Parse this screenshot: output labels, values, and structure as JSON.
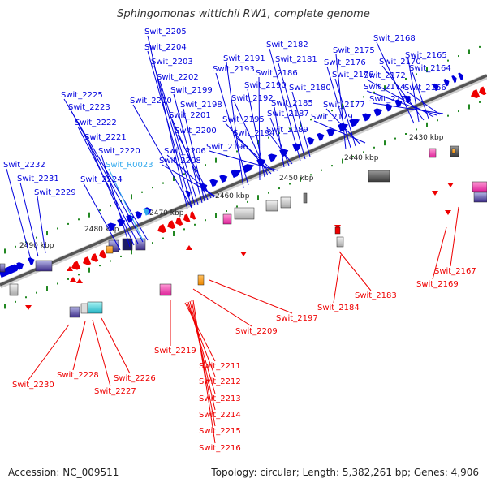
{
  "title": "Sphingomonas wittichii RW1, complete genome",
  "footer": {
    "accession": "Accession: NC_009511",
    "topology": "Topology: circular; Length: 5,382,261 bp; Genes: 4,906"
  },
  "colors": {
    "forward_gene": "#0000dd",
    "reverse_gene": "#ee0000",
    "rna": "#33aaee",
    "backbone": "#555555",
    "tick": "#228822"
  },
  "scale_labels": [
    "2430 kbp",
    "2440 kbp",
    "2450 kbp",
    "2460 kbp",
    "2470 kbp",
    "2480 kbp",
    "2490 kbp"
  ],
  "top_labels": [
    "Swit_2205",
    "Swit_2204",
    "Swit_2203",
    "Swit_2202",
    "Swit_2199",
    "Swit_2198",
    "Swit_2201",
    "Swit_2200",
    "Swit_2206",
    "Swit_2208",
    "Swit_2210",
    "Swit_2225",
    "Swit_2223",
    "Swit_2222",
    "Swit_2221",
    "Swit_2220",
    "Swit_R0023",
    "Swit_2224",
    "Swit_2232",
    "Swit_2231",
    "Swit_2229",
    "Swit_2191",
    "Swit_2193",
    "Swit_2186",
    "Swit_2190",
    "Swit_2192",
    "Swit_2195",
    "Swit_2194",
    "Swit_2196",
    "Swit_2182",
    "Swit_2181",
    "Swit_2180",
    "Swit_2185",
    "Swit_2187",
    "Swit_2189",
    "Swit_2175",
    "Swit_2176",
    "Swit_2178",
    "Swit_2177",
    "Swit_2179",
    "Swit_2168",
    "Swit_2165",
    "Swit_2170",
    "Swit_2164",
    "Swit_2172",
    "Swit_2174",
    "Swit_2166",
    "Swit_2173"
  ],
  "bottom_labels": [
    "Swit_2167",
    "Swit_2169",
    "Swit_2183",
    "Swit_2184",
    "Swit_2197",
    "Swit_2209",
    "Swit_2219",
    "Swit_2211",
    "Swit_2212",
    "Swit_2213",
    "Swit_2214",
    "Swit_2215",
    "Swit_2216",
    "Swit_2226",
    "Swit_2227",
    "Swit_2228",
    "Swit_2230"
  ]
}
